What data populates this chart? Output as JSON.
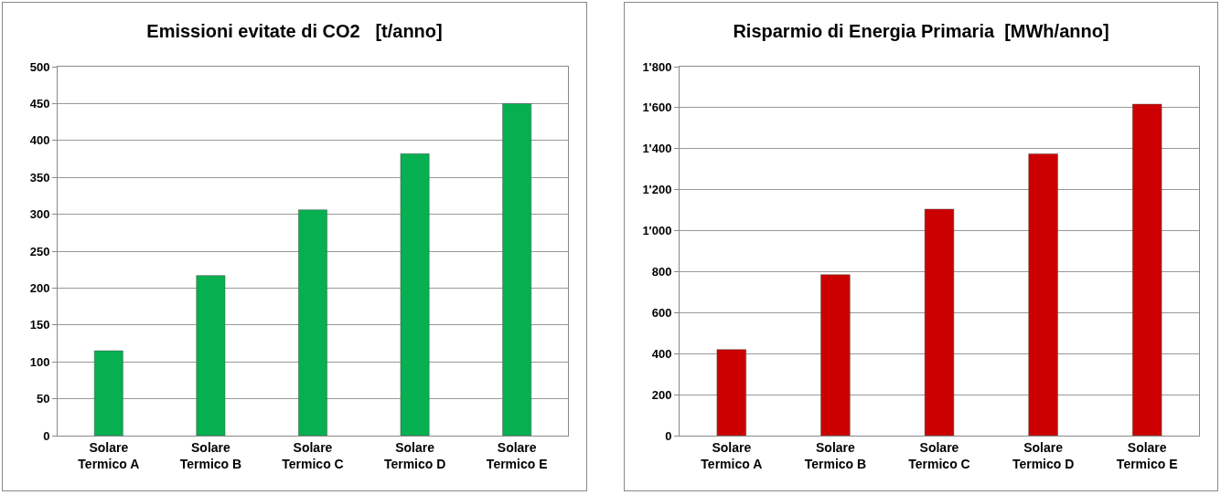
{
  "chart_data": [
    {
      "type": "bar",
      "title": "Emissioni evitate di CO2   [t/anno]",
      "categories": [
        "Solare\nTermico A",
        "Solare\nTermico B",
        "Solare\nTermico C",
        "Solare\nTermico D",
        "Solare\nTermico E"
      ],
      "values": [
        115,
        217,
        306,
        382,
        450
      ],
      "color": "#06b050",
      "ylim": [
        0,
        500
      ],
      "yticks": [
        0,
        50,
        100,
        150,
        200,
        250,
        300,
        350,
        400,
        450,
        500
      ],
      "grid": "y"
    },
    {
      "type": "bar",
      "title": "Risparmio di Energia Primaria  [MWh/anno]",
      "categories": [
        "Solare\nTermico A",
        "Solare\nTermico B",
        "Solare\nTermico C",
        "Solare\nTermico D",
        "Solare\nTermico E"
      ],
      "values": [
        420,
        785,
        1105,
        1375,
        1617
      ],
      "color": "#cc0000",
      "ylim": [
        0,
        1800
      ],
      "yticks": [
        0,
        200,
        400,
        600,
        800,
        {
          "value": 1000,
          "label": "1'000"
        },
        {
          "value": 1200,
          "label": "1'200"
        },
        {
          "value": 1400,
          "label": "1'400"
        },
        {
          "value": 1600,
          "label": "1'600"
        },
        {
          "value": 1800,
          "label": "1'800"
        }
      ],
      "grid": "y"
    }
  ]
}
